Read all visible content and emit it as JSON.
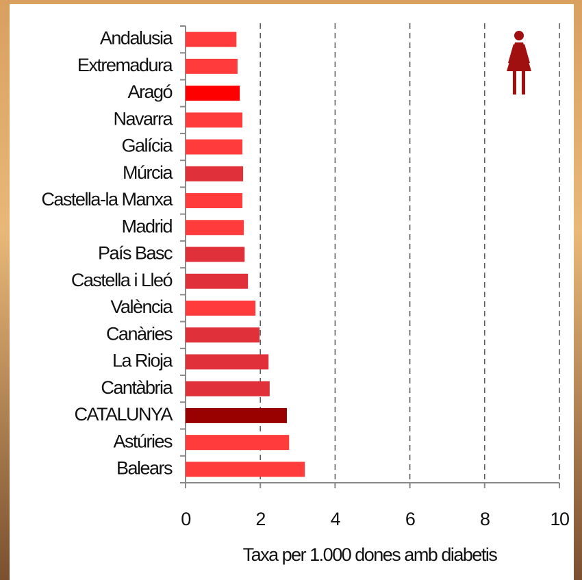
{
  "chart_data": {
    "type": "bar",
    "orientation": "horizontal",
    "x_label": "Taxa per 1.000 dones amb diabetis",
    "categories": [
      "Andalusia",
      "Extremadura",
      "Aragó",
      "Navarra",
      "Galícia",
      "Múrcia",
      "Castella-la Manxa",
      "Madrid",
      "País Basc",
      "Castella i Lleó",
      "València",
      "Canàries",
      "La Rioja",
      "Cantàbria",
      "CATALUNYA",
      "Astúries",
      "Balears"
    ],
    "values": [
      1.36,
      1.39,
      1.45,
      1.52,
      1.52,
      1.54,
      1.52,
      1.56,
      1.58,
      1.67,
      1.87,
      1.98,
      2.22,
      2.25,
      2.71,
      2.77,
      3.19
    ],
    "colors": [
      "#ff3b3b",
      "#ff3b3b",
      "#ff0000",
      "#ff3b3b",
      "#ff3b3b",
      "#e0313a",
      "#ff3b3b",
      "#ff3b3b",
      "#e0313a",
      "#e0313a",
      "#ff3b3b",
      "#e0313a",
      "#e0313a",
      "#e0313a",
      "#990000",
      "#ff3b3b",
      "#ff3b3b"
    ],
    "xlim": [
      0,
      10
    ],
    "xticks": [
      0,
      2,
      4,
      6,
      8,
      10
    ],
    "grid": true
  }
}
